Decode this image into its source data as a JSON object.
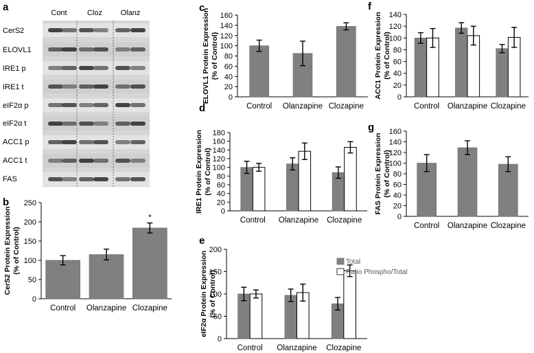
{
  "colors": {
    "total_bar": "#808080",
    "ratio_bar": "#ffffff",
    "axis": "#000000",
    "blot_bg": "#d8d8d8"
  },
  "blot": {
    "panel_label": "a",
    "columns": [
      "Cont",
      "Cloz",
      "Olanz"
    ],
    "rows": [
      "CerS2",
      "ELOVL1",
      "IRE1 p",
      "IRE1 t",
      "eIF2α p",
      "eIF2α t",
      "ACC1 p",
      "ACC1 t",
      "FAS"
    ]
  },
  "legend": {
    "total": "Total",
    "ratio": "Ratio Phospho/Total"
  },
  "chart_data": [
    {
      "id": "b",
      "type": "bar",
      "panel_label": "b",
      "categories": [
        "Control",
        "Olanzapine",
        "Clozapine"
      ],
      "series": [
        {
          "name": "Total",
          "values": [
            100,
            115,
            184
          ],
          "errors": [
            12,
            14,
            13
          ]
        }
      ],
      "annotations": [
        "",
        "",
        "*"
      ],
      "ylabel_line1": "CerS2 Protein Expression",
      "ylabel_line2": "(% of Control)",
      "ylim": [
        0,
        250
      ],
      "yticks": [
        0,
        50,
        100,
        150,
        200,
        250
      ]
    },
    {
      "id": "c",
      "type": "bar",
      "panel_label": "c",
      "categories": [
        "Control",
        "Olanzapine",
        "Clozapine"
      ],
      "series": [
        {
          "name": "Total",
          "values": [
            100,
            85,
            138
          ],
          "errors": [
            11,
            24,
            7
          ]
        }
      ],
      "ylabel_line1": "ELOVL1 Protein Expression",
      "ylabel_line2": "(% of Control)",
      "ylim": [
        0,
        160
      ],
      "yticks": [
        0,
        20,
        40,
        60,
        80,
        100,
        120,
        140,
        160
      ]
    },
    {
      "id": "d",
      "type": "bar",
      "panel_label": "d",
      "categories": [
        "Control",
        "Olanzapine",
        "Clozapine"
      ],
      "series": [
        {
          "name": "Total",
          "values": [
            100,
            108,
            88
          ],
          "errors": [
            14,
            14,
            13
          ]
        },
        {
          "name": "Ratio Phospho/Total",
          "values": [
            100,
            137,
            146
          ],
          "errors": [
            9,
            19,
            13
          ]
        }
      ],
      "ylabel_line1": "IRE1 Protein Expression",
      "ylabel_line2": "(% of Control)",
      "ylim": [
        0,
        180
      ],
      "yticks": [
        0,
        20,
        40,
        60,
        80,
        100,
        120,
        140,
        160,
        180
      ]
    },
    {
      "id": "e",
      "type": "bar",
      "panel_label": "e",
      "categories": [
        "Control",
        "Olanzapine",
        "Clozapine"
      ],
      "series": [
        {
          "name": "Total",
          "values": [
            100,
            97,
            78
          ],
          "errors": [
            15,
            14,
            14
          ]
        },
        {
          "name": "Ratio Phospho/Total",
          "values": [
            100,
            103,
            152
          ],
          "errors": [
            9,
            19,
            13
          ]
        }
      ],
      "ylabel_line1": "eIF2α Protein Expression",
      "ylabel_line2": "(% of Control)",
      "ylim": [
        0,
        200
      ],
      "yticks": [
        0,
        50,
        100,
        150,
        200
      ]
    },
    {
      "id": "f",
      "type": "bar",
      "panel_label": "f",
      "categories": [
        "Control",
        "Olanzapine",
        "Clozapine"
      ],
      "series": [
        {
          "name": "Total",
          "values": [
            100,
            117,
            82
          ],
          "errors": [
            9,
            9,
            7
          ]
        },
        {
          "name": "Ratio Phospho/Total",
          "values": [
            100,
            104,
            101
          ],
          "errors": [
            16,
            16,
            17
          ]
        }
      ],
      "ylabel_line1": "ACC1 Protein Expression",
      "ylabel_line2": "(% of Control)",
      "ylim": [
        0,
        140
      ],
      "yticks": [
        0,
        20,
        40,
        60,
        80,
        100,
        120,
        140
      ]
    },
    {
      "id": "g",
      "type": "bar",
      "panel_label": "g",
      "categories": [
        "Control",
        "Olanzapine",
        "Clozapine"
      ],
      "series": [
        {
          "name": "Total",
          "values": [
            100,
            129,
            98
          ],
          "errors": [
            16,
            13,
            14
          ]
        }
      ],
      "ylabel_line1": "FAS Protein Expression",
      "ylabel_line2": "(% of Control)",
      "ylim": [
        0,
        160
      ],
      "yticks": [
        0,
        20,
        40,
        60,
        80,
        100,
        120,
        140,
        160
      ]
    }
  ]
}
